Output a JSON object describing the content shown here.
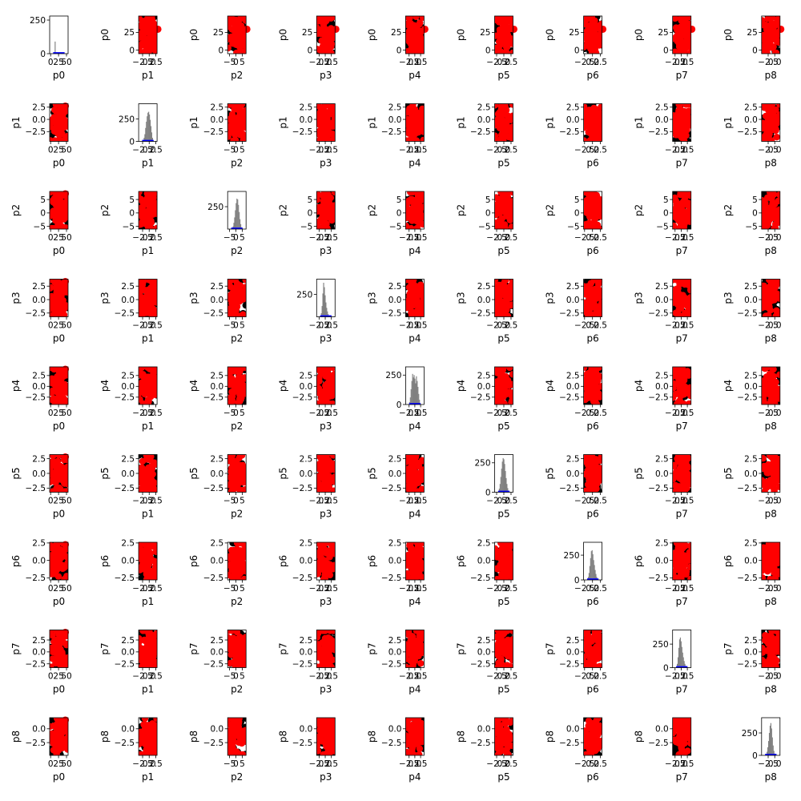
{
  "figure": {
    "type": "scatter-matrix"
  },
  "colors": {
    "background": "#000000",
    "subset": "#ff0000",
    "histogram": "#808080",
    "histogram_subset": "#0000ff",
    "axes": "#000000"
  },
  "chart_data": {
    "type": "scatter",
    "variables": [
      "p0",
      "p1",
      "p2",
      "p3",
      "p4",
      "p5",
      "p6",
      "p7",
      "p8"
    ],
    "diagonal": "histogram",
    "point_size_relative": "large",
    "x_axes": {
      "p0": {
        "lim": [
          -3,
          55
        ],
        "ticks": [
          0,
          25,
          50
        ],
        "ticklabels": [
          "0",
          "25",
          "50"
        ]
      },
      "p1": {
        "lim": [
          -4.0,
          3.0
        ],
        "ticks": [
          -2.5,
          0.0,
          2.5
        ],
        "ticklabels": [
          "−2.5",
          "0.0",
          "2.5"
        ]
      },
      "p2": {
        "lim": [
          -6.5,
          8.0
        ],
        "ticks": [
          -5,
          0,
          5
        ],
        "ticklabels": [
          "−5",
          "0",
          "5"
        ]
      },
      "p3": {
        "lim": [
          -3.5,
          4.0
        ],
        "ticks": [
          -2.5,
          0.0,
          2.5
        ],
        "ticklabels": [
          "−2.5",
          "0.0",
          "2.5"
        ]
      },
      "p4": {
        "lim": [
          -4.0,
          4.0
        ],
        "ticks": [
          -2.5,
          0.0,
          2.5
        ],
        "ticklabels": [
          "−2.5",
          "0.0",
          "2.5"
        ]
      },
      "p5": {
        "lim": [
          -3.2,
          3.2
        ],
        "ticks": [
          -2.5,
          0.0,
          2.5
        ],
        "ticklabels": [
          "−2.5",
          "0.0",
          "2.5"
        ]
      },
      "p6": {
        "lim": [
          -2.8,
          3.0
        ],
        "ticks": [
          -2.5,
          0.0,
          2.5
        ],
        "ticklabels": [
          "−2.5",
          "0.0",
          "2.5"
        ]
      },
      "p7": {
        "lim": [
          -3.5,
          4.0
        ],
        "ticks": [
          -2.5,
          0.0,
          2.5
        ],
        "ticklabels": [
          "−2.5",
          "0.0",
          "2.5"
        ]
      },
      "p8": {
        "lim": [
          -5.0,
          2.0
        ],
        "ticks": [
          -2.5,
          0.0
        ],
        "ticklabels": [
          "−2.5",
          "0.0"
        ]
      }
    },
    "y_axes": {
      "p0": {
        "lim": [
          -5,
          48
        ],
        "ticks": [
          0,
          25
        ],
        "ticklabels": [
          "0",
          "25"
        ]
      },
      "p1": {
        "lim": [
          -4.5,
          3.2
        ],
        "ticks": [
          -2.5,
          0.0,
          2.5
        ],
        "ticklabels": [
          "−2.5",
          "0.0",
          "2.5"
        ]
      },
      "p2": {
        "lim": [
          -6.0,
          8.0
        ],
        "ticks": [
          -5,
          0,
          5
        ],
        "ticklabels": [
          "−5",
          "0",
          "5"
        ]
      },
      "p3": {
        "lim": [
          -3.2,
          3.8
        ],
        "ticks": [
          -2.5,
          0.0,
          2.5
        ],
        "ticklabels": [
          "−2.5",
          "0.0",
          "2.5"
        ]
      },
      "p4": {
        "lim": [
          -4.2,
          4.5
        ],
        "ticks": [
          -2.5,
          0.0,
          2.5
        ],
        "ticklabels": [
          "−2.5",
          "0.0",
          "2.5"
        ]
      },
      "p5": {
        "lim": [
          -3.2,
          3.2
        ],
        "ticks": [
          -2.5,
          0.0,
          2.5
        ],
        "ticklabels": [
          "−2.5",
          "0.0",
          "2.5"
        ]
      },
      "p6": {
        "lim": [
          -2.8,
          2.6
        ],
        "ticks": [
          -2.5,
          0.0,
          2.5
        ],
        "ticklabels": [
          "−2.5",
          "0.0",
          "2.5"
        ]
      },
      "p7": {
        "lim": [
          -3.3,
          4.6
        ],
        "ticks": [
          -2.5,
          0.0,
          2.5
        ],
        "ticklabels": [
          "−2.5",
          "0.0",
          "2.5"
        ]
      },
      "p8": {
        "lim": [
          -4.8,
          2.0
        ],
        "ticks": [
          -2.5,
          0.0
        ],
        "ticklabels": [
          "−2.5",
          "0.0"
        ]
      }
    },
    "hist_axes": {
      "p0": {
        "ylim": [
          0,
          280
        ],
        "ticks": [
          0,
          250
        ],
        "ticklabels": [
          "0",
          "250"
        ]
      },
      "p1": {
        "ylim": [
          0,
          420
        ],
        "ticks": [
          0,
          250
        ],
        "ticklabels": [
          "0",
          "250"
        ]
      },
      "p2": {
        "ylim": [
          0,
          420
        ],
        "ticks": [
          250
        ],
        "ticklabels": [
          "250"
        ]
      },
      "p3": {
        "ylim": [
          0,
          420
        ],
        "ticks": [
          250
        ],
        "ticklabels": [
          "250"
        ]
      },
      "p4": {
        "ylim": [
          0,
          320
        ],
        "ticks": [
          0,
          250
        ],
        "ticklabels": [
          "0",
          "250"
        ]
      },
      "p5": {
        "ylim": [
          0,
          320
        ],
        "ticks": [
          0,
          250
        ],
        "ticklabels": [
          "0",
          "250"
        ]
      },
      "p6": {
        "ylim": [
          0,
          380
        ],
        "ticks": [
          0,
          250
        ],
        "ticklabels": [
          "0",
          "250"
        ]
      },
      "p7": {
        "ylim": [
          0,
          400
        ],
        "ticks": [
          0,
          250
        ],
        "ticklabels": [
          "0",
          "250"
        ]
      },
      "p8": {
        "ylim": [
          0,
          420
        ],
        "ticks": [
          0,
          250
        ],
        "ticklabels": [
          "0",
          "250"
        ]
      }
    },
    "hist_shapes": {
      "p0": [
        0,
        0,
        90,
        0,
        0,
        0,
        0,
        0,
        0,
        0,
        0,
        0,
        0,
        0,
        0
      ],
      "p1": [
        5,
        15,
        40,
        80,
        150,
        220,
        280,
        320,
        330,
        300,
        240,
        170,
        100,
        40,
        10
      ],
      "p2": [
        5,
        12,
        30,
        70,
        130,
        210,
        290,
        340,
        330,
        270,
        190,
        110,
        55,
        20,
        6
      ],
      "p3": [
        8,
        40,
        120,
        260,
        380,
        330,
        240,
        160,
        100,
        60,
        30,
        15,
        6,
        3,
        1
      ],
      "p4": [
        20,
        60,
        130,
        200,
        260,
        230,
        250,
        220,
        180,
        240,
        200,
        150,
        90,
        40,
        10
      ],
      "p5": [
        10,
        30,
        70,
        130,
        200,
        260,
        290,
        280,
        240,
        180,
        120,
        70,
        35,
        12,
        4
      ],
      "p6": [
        10,
        30,
        70,
        140,
        220,
        290,
        300,
        260,
        200,
        150,
        100,
        60,
        30,
        12,
        4
      ],
      "p7": [
        10,
        40,
        110,
        210,
        300,
        320,
        280,
        220,
        160,
        110,
        70,
        40,
        20,
        8,
        2
      ],
      "p8": [
        5,
        15,
        40,
        90,
        160,
        250,
        330,
        360,
        300,
        200,
        110,
        50,
        20,
        8,
        2
      ]
    },
    "hist_subset_level": 0.08
  }
}
